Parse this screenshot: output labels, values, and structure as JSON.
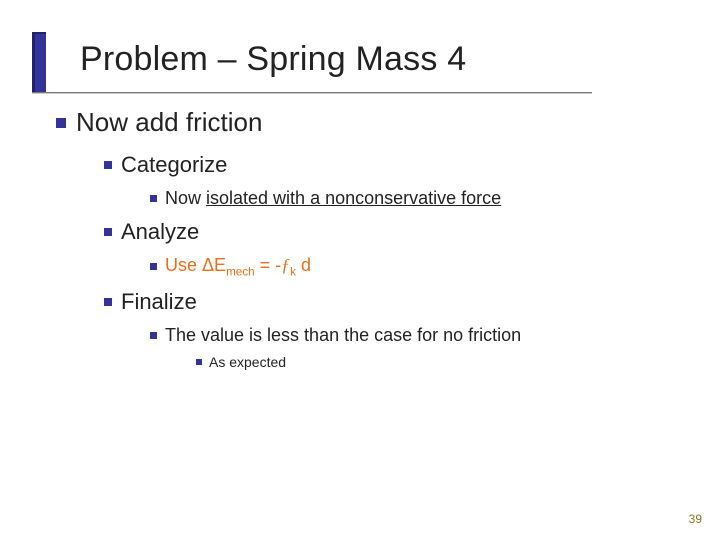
{
  "colors": {
    "bullet": "#333399",
    "accent_bar": "#333399",
    "formula": "#e86f1a",
    "text": "#222222",
    "page_num": "#8a7020",
    "background": "#ffffff"
  },
  "typography": {
    "title_fontsize": 34,
    "lvl1_fontsize": 26,
    "lvl2_fontsize": 22,
    "lvl3_fontsize": 18,
    "lvl5_fontsize": 14,
    "font_family": "Verdana"
  },
  "slide": {
    "title": "Problem – Spring Mass 4",
    "page_number": "39",
    "lvl1": {
      "text": "Now add friction",
      "children": [
        {
          "label": "Categorize",
          "detail_prefix": "Now ",
          "detail_underlined": "isolated with a nonconservative force"
        },
        {
          "label": "Analyze",
          "formula_prefix": "Use ",
          "formula_delta": "Δ",
          "formula_E": "E",
          "formula_sub": "mech",
          "formula_eq": " = -",
          "formula_fk_f": "ƒ",
          "formula_fk_k": "k",
          "formula_d": " d"
        },
        {
          "label": "Finalize",
          "detail": "The value is less than the case for no friction",
          "subdetail": "As expected"
        }
      ]
    }
  }
}
